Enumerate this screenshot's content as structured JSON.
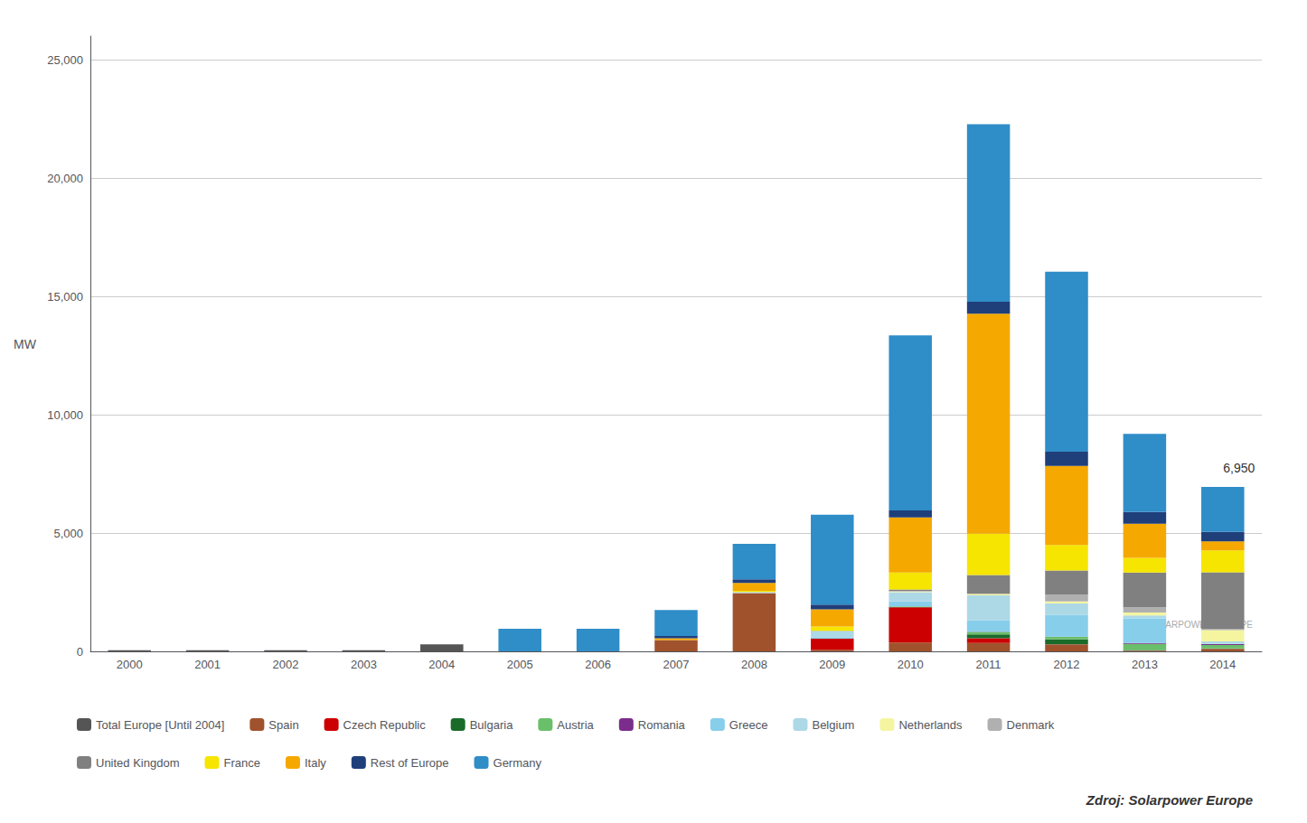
{
  "chart_data": {
    "type": "bar",
    "stacked": true,
    "grid": true,
    "legend": "bottom",
    "ylabel": "MW",
    "categories": [
      "2000",
      "2001",
      "2002",
      "2003",
      "2004",
      "2005",
      "2006",
      "2007",
      "2008",
      "2009",
      "2010",
      "2011",
      "2012",
      "2013",
      "2014"
    ],
    "ylim": [
      0,
      26000
    ],
    "yticks": [
      0,
      {
        "value": 5000,
        "label": "5,000"
      },
      {
        "value": 10000,
        "label": "10,000"
      },
      {
        "value": 15000,
        "label": "15,000"
      },
      {
        "value": 20000,
        "label": "20,000"
      },
      {
        "value": 25000,
        "label": "25,000"
      }
    ],
    "series": [
      {
        "name": "Total Europe [Until 2004]",
        "color": "#555555",
        "values": [
          50,
          50,
          50,
          50,
          300,
          0,
          0,
          0,
          0,
          0,
          0,
          0,
          0,
          0,
          0
        ]
      },
      {
        "name": "Spain",
        "color": "#a0522d",
        "values": [
          0,
          0,
          0,
          0,
          0,
          0,
          0,
          480,
          2460,
          69,
          370,
          354,
          288,
          20,
          100
        ]
      },
      {
        "name": "Czech Republic",
        "color": "#cc0000",
        "values": [
          0,
          0,
          0,
          0,
          0,
          0,
          0,
          0,
          0,
          463,
          1490,
          196,
          9,
          4,
          2
        ]
      },
      {
        "name": "Bulgaria",
        "color": "#1a6b2a",
        "values": [
          0,
          0,
          0,
          0,
          0,
          0,
          0,
          0,
          0,
          0,
          18,
          166,
          205,
          30,
          20
        ]
      },
      {
        "name": "Austria",
        "color": "#6abf6a",
        "values": [
          0,
          0,
          0,
          0,
          0,
          0,
          0,
          0,
          0,
          0,
          22,
          107,
          106,
          258,
          150
        ]
      },
      {
        "name": "Romania",
        "color": "#7b2d8b",
        "values": [
          0,
          0,
          0,
          0,
          0,
          0,
          0,
          0,
          0,
          0,
          3,
          8,
          15,
          45,
          35
        ]
      },
      {
        "name": "Greece",
        "color": "#87ceeb",
        "values": [
          0,
          0,
          0,
          0,
          0,
          0,
          0,
          0,
          0,
          36,
          206,
          484,
          921,
          1033,
          10
        ]
      },
      {
        "name": "Belgium",
        "color": "#add8e6",
        "values": [
          0,
          0,
          0,
          0,
          0,
          0,
          0,
          0,
          49,
          292,
          389,
          1055,
          484,
          124,
          100
        ]
      },
      {
        "name": "Netherlands",
        "color": "#f5f5a0",
        "values": [
          0,
          0,
          0,
          0,
          0,
          0,
          0,
          0,
          0,
          0,
          30,
          50,
          77,
          124,
          480
        ]
      },
      {
        "name": "Denmark",
        "color": "#b0b0b0",
        "values": [
          0,
          0,
          0,
          0,
          0,
          0,
          0,
          0,
          0,
          0,
          16,
          18,
          300,
          228,
          57
        ]
      },
      {
        "name": "United Kingdom",
        "color": "#808080",
        "values": [
          0,
          0,
          0,
          0,
          0,
          0,
          0,
          0,
          0,
          9,
          72,
          784,
          1011,
          1469,
          2385
        ]
      },
      {
        "name": "France",
        "color": "#f5e500",
        "values": [
          0,
          0,
          0,
          0,
          0,
          0,
          0,
          0,
          46,
          185,
          719,
          1750,
          1075,
          613,
          927
        ]
      },
      {
        "name": "Italy",
        "color": "#f5a800",
        "values": [
          0,
          0,
          0,
          0,
          0,
          0,
          0,
          70,
          338,
          724,
          2321,
          9301,
          3350,
          1442,
          385
        ]
      },
      {
        "name": "Rest of Europe",
        "color": "#1f3f7a",
        "values": [
          0,
          0,
          0,
          0,
          0,
          0,
          0,
          100,
          150,
          200,
          300,
          500,
          600,
          500,
          400
        ]
      },
      {
        "name": "Germany",
        "color": "#2f8dc8",
        "values": [
          0,
          0,
          0,
          0,
          0,
          950,
          950,
          1100,
          1500,
          3800,
          7400,
          7500,
          7600,
          3300,
          1900
        ]
      }
    ],
    "annotations": [
      {
        "text": "6,950",
        "x": "2014",
        "y": 6950
      },
      {
        "text": "© SOLARPOWER EUROPE"
      },
      {
        "text": "Zdroj: Solarpower Europe"
      }
    ]
  }
}
